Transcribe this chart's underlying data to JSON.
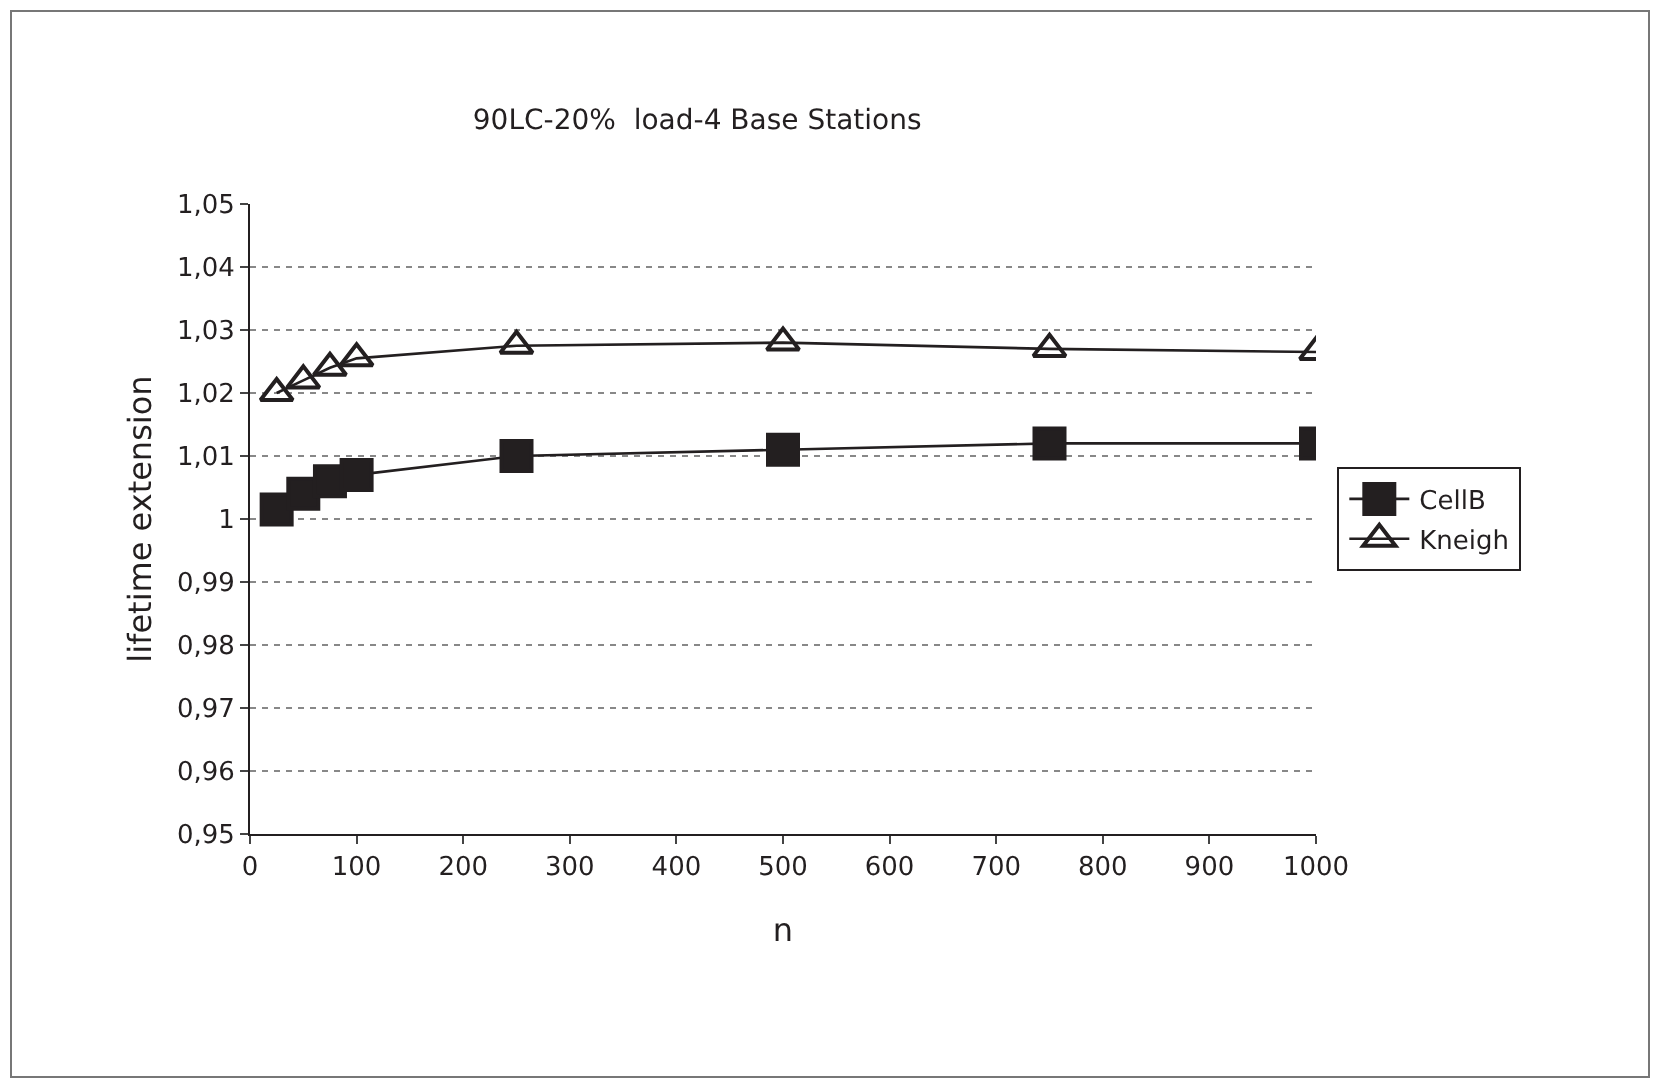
{
  "chart_data": {
    "type": "line",
    "title": "90LC-20%  load-4 Base Stations",
    "xlabel": "n",
    "ylabel": "lifetime extension",
    "x": [
      25,
      50,
      75,
      100,
      250,
      500,
      750,
      1000
    ],
    "series": [
      {
        "name": "CellB",
        "color": "#231f20",
        "marker": "square",
        "values": [
          1.0015,
          1.004,
          1.006,
          1.007,
          1.01,
          1.011,
          1.012,
          1.012
        ]
      },
      {
        "name": "Kneigh",
        "color": "#231f20",
        "marker": "triangle",
        "values": [
          1.02,
          1.022,
          1.024,
          1.0255,
          1.0275,
          1.028,
          1.027,
          1.0265
        ]
      }
    ],
    "xlim": [
      0,
      1000
    ],
    "xticks": [
      0,
      100,
      200,
      300,
      400,
      500,
      600,
      700,
      800,
      900,
      1000
    ],
    "ylim": [
      0.95,
      1.05
    ],
    "yticks": [
      {
        "value": 0.95,
        "label": "0,95"
      },
      {
        "value": 0.96,
        "label": "0,96"
      },
      {
        "value": 0.97,
        "label": "0,97"
      },
      {
        "value": 0.98,
        "label": "0,98"
      },
      {
        "value": 0.99,
        "label": "0,99"
      },
      {
        "value": 1,
        "label": "1"
      },
      {
        "value": 1.01,
        "label": "1,01"
      },
      {
        "value": 1.02,
        "label": "1,02"
      },
      {
        "value": 1.03,
        "label": "1,03"
      },
      {
        "value": 1.04,
        "label": "1,04"
      },
      {
        "value": 1.05,
        "label": "1,05"
      }
    ],
    "grid": "y",
    "legend": "right",
    "line_style": "solid"
  }
}
